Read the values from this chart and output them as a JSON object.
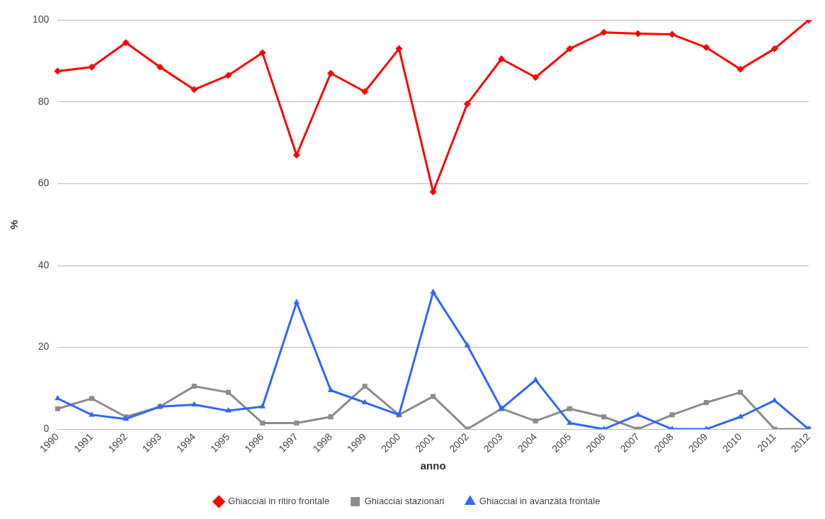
{
  "chart_data": {
    "type": "line",
    "xlabel": "anno",
    "ylabel": "%",
    "categories": [
      "1990",
      "1991",
      "1992",
      "1993",
      "1994",
      "1995",
      "1996",
      "1997",
      "1998",
      "1999",
      "2000",
      "2001",
      "2002",
      "2003",
      "2004",
      "2005",
      "2006",
      "2007",
      "2008",
      "2009",
      "2010",
      "2011",
      "2012"
    ],
    "series": [
      {
        "name": "Ghiacciai in ritiro frontale",
        "color": "#ff0000",
        "marker": "diamond",
        "values": [
          87.5,
          88.5,
          94.5,
          88.5,
          83,
          86.5,
          92,
          67,
          87,
          82.5,
          93,
          58,
          79.5,
          90.5,
          86,
          93,
          97,
          96.7,
          96.5,
          93.3,
          88,
          93,
          100
        ]
      },
      {
        "name": "Ghiacciai stazionari",
        "color": "#8c8c8c",
        "marker": "square",
        "values": [
          5,
          7.5,
          3,
          5.5,
          10.5,
          9,
          1.5,
          1.5,
          3,
          10.5,
          3.5,
          8,
          0,
          5,
          2,
          5,
          3,
          0,
          3.5,
          6.5,
          9,
          0,
          0
        ]
      },
      {
        "name": "Ghiacciai in avanzata frontale",
        "color": "#3366ff",
        "marker": "triangle",
        "values": [
          7.5,
          3.5,
          2.5,
          5.5,
          6,
          4.5,
          5.5,
          31,
          9.5,
          6.5,
          3.5,
          33.5,
          20.5,
          5,
          12,
          1.5,
          0,
          3.5,
          0,
          0,
          3,
          7,
          0
        ]
      }
    ],
    "ylim": [
      0,
      100
    ],
    "yticks": [
      0,
      20,
      40,
      60,
      80,
      100
    ],
    "grid": "y",
    "legend": "bottom",
    "line_style": "solid"
  }
}
